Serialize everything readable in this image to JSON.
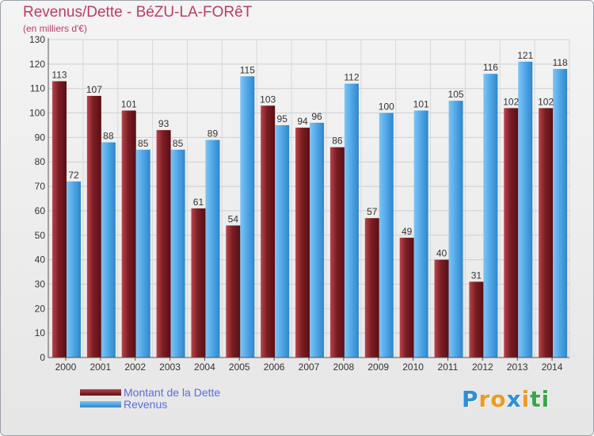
{
  "chart_data": {
    "type": "bar",
    "title": "Revenus/Dette - BéZU-LA-FORêT",
    "subtitle": "(en milliers d'€)",
    "categories": [
      "2000",
      "2001",
      "2002",
      "2003",
      "2004",
      "2005",
      "2006",
      "2007",
      "2008",
      "2009",
      "2010",
      "2011",
      "2012",
      "2013",
      "2014"
    ],
    "series": [
      {
        "name": "Montant de la Dette",
        "color": "#7a1e24",
        "values": [
          113,
          107,
          101,
          93,
          61,
          54,
          103,
          94,
          86,
          57,
          49,
          40,
          31,
          102,
          102
        ]
      },
      {
        "name": "Revenus",
        "color": "#4fa6e6",
        "values": [
          72,
          88,
          85,
          85,
          89,
          115,
          95,
          96,
          112,
          100,
          101,
          105,
          116,
          121,
          118
        ]
      }
    ],
    "yticks": [
      0,
      10,
      20,
      30,
      40,
      50,
      60,
      70,
      80,
      90,
      100,
      110,
      120,
      130
    ],
    "ylim": [
      0,
      130
    ],
    "grid": true,
    "legend_position": "bottom-left"
  },
  "logo": {
    "letters": [
      "P",
      "r",
      "o",
      "x",
      "i",
      "t",
      "i"
    ],
    "colors": [
      "#2e8fd6",
      "#f09a1f",
      "#f09a1f",
      "#2e8fd6",
      "#f09a1f",
      "#3aa64a",
      "#3aa64a"
    ]
  }
}
